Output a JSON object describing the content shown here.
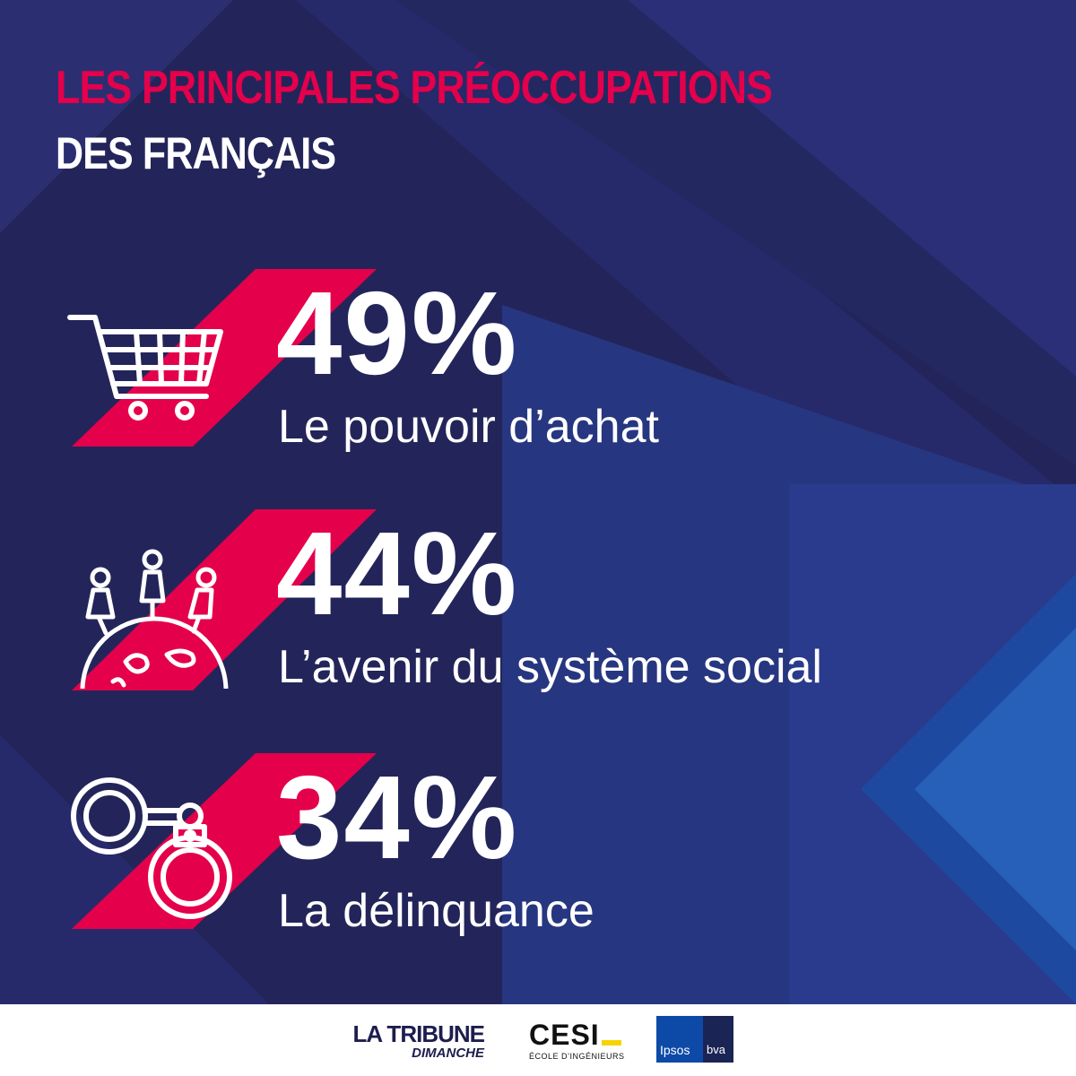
{
  "title": {
    "line1": "LES PRINCIPALES PRÉOCCUPATIONS",
    "line2": "DES FRANÇAIS"
  },
  "colors": {
    "background": "#23255a",
    "accent": "#e4004b",
    "text": "#ffffff",
    "blue_stripe": "#1f3a9a"
  },
  "chart_data": {
    "type": "bar",
    "title": "LES PRINCIPALES PRÉOCCUPATIONS DES FRANÇAIS",
    "categories": [
      "Le pouvoir d’achat",
      "L’avenir du système social",
      "La délinquance"
    ],
    "values": [
      49,
      44,
      34
    ],
    "unit": "%",
    "items": [
      {
        "value": "49%",
        "label": "Le pouvoir d’achat",
        "icon": "shopping-cart-icon"
      },
      {
        "value": "44%",
        "label": "L’avenir du système social",
        "icon": "people-globe-icon"
      },
      {
        "value": "34%",
        "label": "La délinquance",
        "icon": "handcuffs-icon"
      }
    ]
  },
  "footer": {
    "tribune": "LA TRIBUNE",
    "tribune_sub": "DIMANCHE",
    "cesi": "CESI",
    "cesi_sub": "ÉCOLE D’INGÉNIEURS",
    "ipsos": "Ipsos",
    "bva": "bva"
  }
}
